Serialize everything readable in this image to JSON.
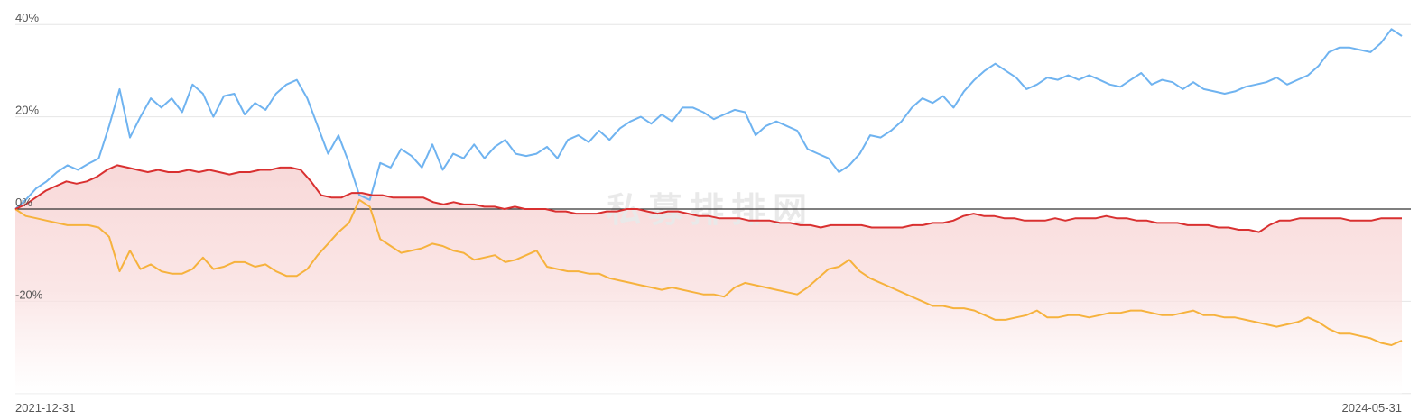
{
  "chart_data": {
    "type": "line",
    "title": "",
    "xlabel": "",
    "ylabel": "",
    "x_start_label": "2021-12-31",
    "x_end_label": "2024-05-31",
    "y_ticks": [
      {
        "value": 40,
        "label": "40%"
      },
      {
        "value": 20,
        "label": "20%"
      },
      {
        "value": 0,
        "label": "0%"
      },
      {
        "value": -20,
        "label": "-20%"
      }
    ],
    "ylim": [
      -40,
      41
    ],
    "grid": true,
    "watermark": "私募排排网",
    "colors": {
      "series_blue": "#6fb3f0",
      "series_red": "#d93030",
      "series_orange": "#f6b23d",
      "excess_area": "#f7d2d2",
      "zero_line": "#333333",
      "grid": "#e6e6e6"
    },
    "series": [
      {
        "color": "series_blue",
        "values": [
          0.0,
          2.0,
          4.5,
          6.0,
          8.0,
          9.5,
          8.5,
          9.8,
          11.0,
          18.0,
          26.0,
          15.5,
          20.0,
          24.0,
          22.0,
          24.0,
          21.0,
          27.0,
          25.0,
          20.0,
          24.5,
          25.0,
          20.5,
          23.0,
          21.5,
          25.0,
          27.0,
          28.0,
          24.0,
          18.0,
          12.0,
          16.0,
          10.0,
          3.0,
          2.0,
          10.0,
          9.0,
          13.0,
          11.5,
          9.0,
          14.0,
          8.5,
          12.0,
          11.0,
          14.0,
          11.0,
          13.5,
          15.0,
          12.0,
          11.5,
          12.0,
          13.5,
          11.0,
          15.0,
          16.0,
          14.5,
          17.0,
          15.0,
          17.5,
          19.0,
          20.0,
          18.5,
          20.5,
          19.0,
          22.0,
          22.0,
          21.0,
          19.5,
          20.5,
          21.5,
          21.0,
          16.0,
          18.0,
          19.0,
          18.0,
          17.0,
          13.0,
          12.0,
          11.0,
          8.0,
          9.5,
          12.0,
          16.0,
          15.5,
          17.0,
          19.0,
          22.0,
          24.0,
          23.0,
          24.5,
          22.0,
          25.5,
          28.0,
          30.0,
          31.5,
          30.0,
          28.5,
          26.0,
          27.0,
          28.5,
          28.0,
          29.0,
          28.0,
          29.0,
          28.0,
          27.0,
          26.5,
          28.0,
          29.5,
          27.0,
          28.0,
          27.5,
          26.0,
          27.5,
          26.0,
          25.5,
          25.0,
          25.5,
          26.5,
          27.0,
          27.5,
          28.5,
          27.0,
          28.0,
          29.0,
          31.0,
          34.0,
          35.0,
          35.0,
          34.5,
          34.0,
          36.0,
          39.0,
          37.5
        ]
      },
      {
        "color": "series_red",
        "values": [
          0.0,
          1.0,
          2.5,
          4.0,
          5.0,
          6.0,
          5.5,
          6.0,
          7.0,
          8.5,
          9.5,
          9.0,
          8.5,
          8.0,
          8.5,
          8.0,
          8.0,
          8.5,
          8.0,
          8.5,
          8.0,
          7.5,
          8.0,
          8.0,
          8.5,
          8.5,
          9.0,
          9.0,
          8.5,
          6.0,
          3.0,
          2.5,
          2.5,
          3.5,
          3.5,
          3.0,
          3.0,
          2.5,
          2.5,
          2.5,
          2.5,
          1.5,
          1.0,
          1.5,
          1.0,
          1.0,
          0.5,
          0.5,
          0.0,
          0.5,
          0.0,
          0.0,
          0.0,
          -0.5,
          -0.5,
          -1.0,
          -1.0,
          -1.0,
          -0.5,
          -0.5,
          0.0,
          0.0,
          -0.5,
          -1.0,
          -0.5,
          -0.5,
          -1.0,
          -1.5,
          -1.5,
          -2.0,
          -2.0,
          -2.0,
          -2.5,
          -2.5,
          -2.5,
          -3.0,
          -3.0,
          -3.5,
          -3.5,
          -4.0,
          -3.5,
          -3.5,
          -3.5,
          -3.5,
          -4.0,
          -4.0,
          -4.0,
          -4.0,
          -3.5,
          -3.5,
          -3.0,
          -3.0,
          -2.5,
          -1.5,
          -1.0,
          -1.5,
          -1.5,
          -2.0,
          -2.0,
          -2.5,
          -2.5,
          -2.5,
          -2.0,
          -2.5,
          -2.0,
          -2.0,
          -2.0,
          -1.5,
          -2.0,
          -2.0,
          -2.5,
          -2.5,
          -3.0,
          -3.0,
          -3.0,
          -3.5,
          -3.5,
          -3.5,
          -4.0,
          -4.0,
          -4.5,
          -4.5,
          -5.0,
          -3.5,
          -2.5,
          -2.5,
          -2.0,
          -2.0,
          -2.0,
          -2.0,
          -2.0,
          -2.5,
          -2.5,
          -2.5,
          -2.0,
          -2.0,
          -2.0
        ]
      },
      {
        "color": "series_orange",
        "values": [
          0.0,
          -1.5,
          -2.0,
          -2.5,
          -3.0,
          -3.5,
          -3.5,
          -3.5,
          -4.0,
          -6.0,
          -13.5,
          -9.0,
          -13.0,
          -12.0,
          -13.5,
          -14.0,
          -14.0,
          -13.0,
          -10.5,
          -13.0,
          -12.5,
          -11.5,
          -11.5,
          -12.5,
          -12.0,
          -13.5,
          -14.5,
          -14.5,
          -13.0,
          -10.0,
          -7.5,
          -5.0,
          -3.0,
          2.0,
          0.5,
          -6.5,
          -8.0,
          -9.5,
          -9.0,
          -8.5,
          -7.5,
          -8.0,
          -9.0,
          -9.5,
          -11.0,
          -10.5,
          -10.0,
          -11.5,
          -11.0,
          -10.0,
          -9.0,
          -12.5,
          -13.0,
          -13.5,
          -13.5,
          -14.0,
          -14.0,
          -15.0,
          -15.5,
          -16.0,
          -16.5,
          -17.0,
          -17.5,
          -17.0,
          -17.5,
          -18.0,
          -18.5,
          -18.5,
          -19.0,
          -17.0,
          -16.0,
          -16.5,
          -17.0,
          -17.5,
          -18.0,
          -18.5,
          -17.0,
          -15.0,
          -13.0,
          -12.5,
          -11.0,
          -13.5,
          -15.0,
          -16.0,
          -17.0,
          -18.0,
          -19.0,
          -20.0,
          -21.0,
          -21.0,
          -21.5,
          -21.5,
          -22.0,
          -23.0,
          -24.0,
          -24.0,
          -23.5,
          -23.0,
          -22.0,
          -23.5,
          -23.5,
          -23.0,
          -23.0,
          -23.5,
          -23.0,
          -22.5,
          -22.5,
          -22.0,
          -22.0,
          -22.5,
          -23.0,
          -23.0,
          -22.5,
          -22.0,
          -23.0,
          -23.0,
          -23.5,
          -23.5,
          -24.0,
          -24.5,
          -25.0,
          -25.5,
          -25.0,
          -24.5,
          -23.5,
          -24.5,
          -26.0,
          -27.0,
          -27.0,
          -27.5,
          -28.0,
          -29.0,
          -29.5,
          -28.5
        ]
      }
    ]
  }
}
